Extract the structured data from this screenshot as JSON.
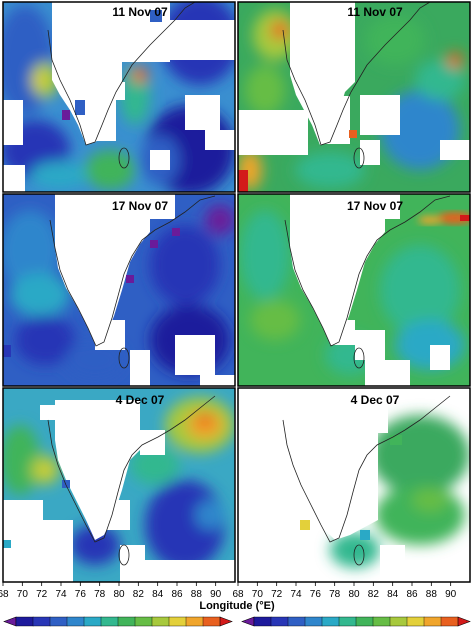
{
  "chart_data": {
    "type": "heatmap",
    "layout": "3x2 panel grid",
    "panels": [
      {
        "title": "11 Nov 07"
      },
      {
        "title": "11 Nov 07"
      },
      {
        "title": "17 Nov 07"
      },
      {
        "title": "17 Nov 07"
      },
      {
        "title": "4 Dec 07"
      },
      {
        "title": "4 Dec 07"
      }
    ],
    "xlabel": "Longitude (°E)",
    "x_ticks": [
      "68",
      "70",
      "72",
      "74",
      "76",
      "78",
      "80",
      "82",
      "84",
      "86",
      "88",
      "90"
    ],
    "xlim": [
      68,
      92
    ],
    "colorbar": {
      "colors": [
        "#6a1b9a",
        "#1d1a9c",
        "#2836b6",
        "#2f5fc4",
        "#2f86cc",
        "#2aa9c6",
        "#33b88f",
        "#41b45a",
        "#66bd45",
        "#a7c93d",
        "#e3d03a",
        "#f0a52c",
        "#e8601f",
        "#d31a1a"
      ]
    },
    "colors": {
      "ocean_low": "#2a3fa8",
      "ocean_mid": "#35b0b0",
      "ocean_green": "#45b04e",
      "high": "#e8c23a",
      "peak": "#d9291f",
      "missing": "#ffffff",
      "coast": "#222222"
    }
  }
}
